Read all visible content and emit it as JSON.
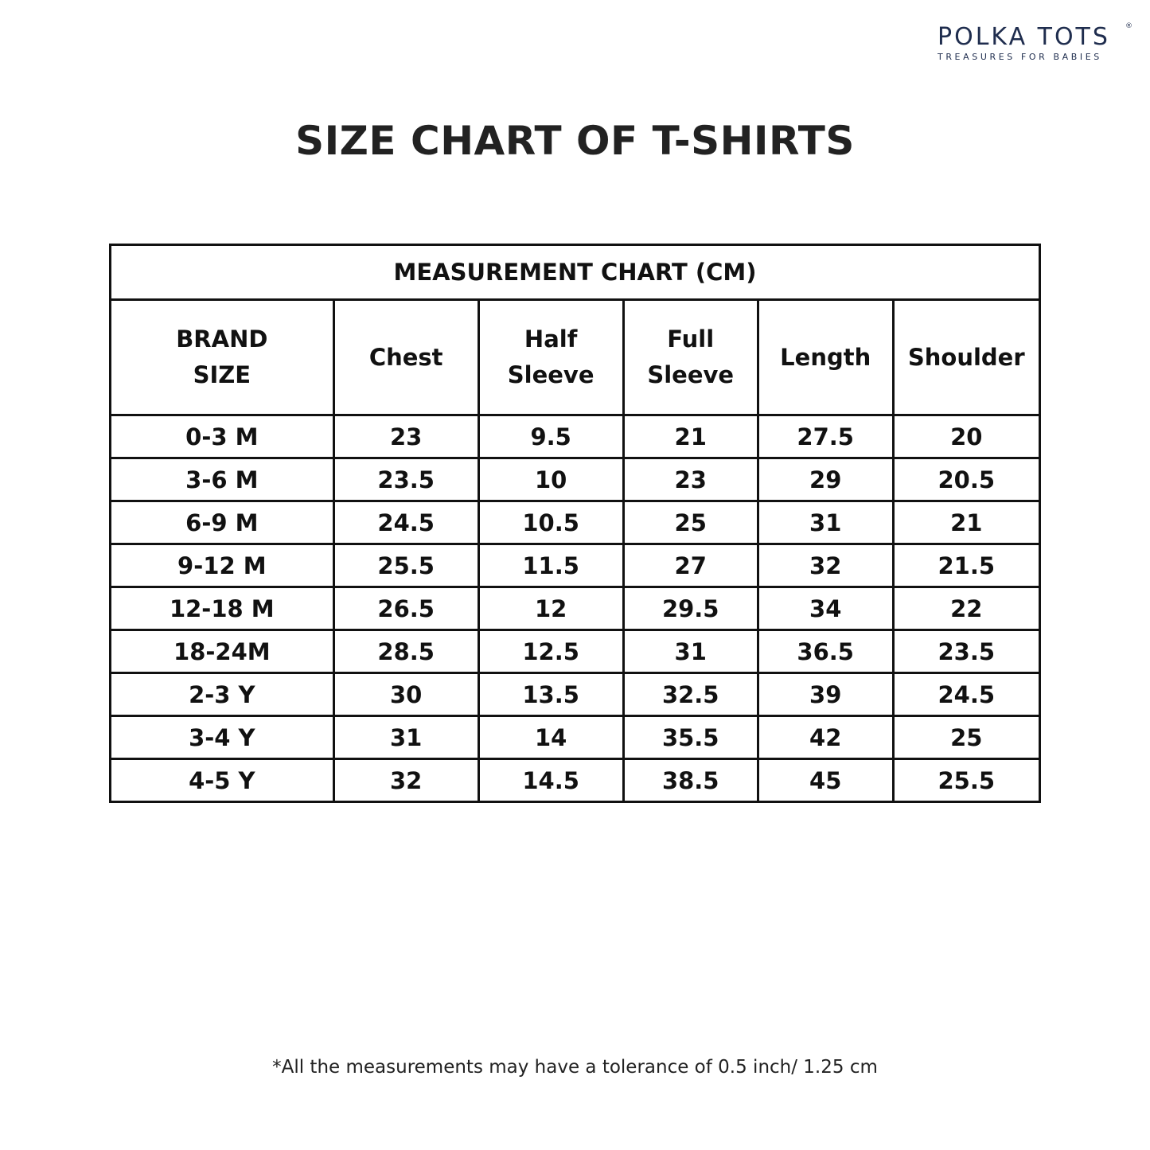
{
  "logo": {
    "brand": "POLKA TOTS",
    "tagline": "TREASURES FOR BABIES",
    "registered": "®",
    "colors": [
      "#1f2d4e",
      "#e5338a",
      "#f5c518",
      "#7ac143"
    ]
  },
  "title": "SIZE CHART OF T-SHIRTS",
  "table": {
    "caption": "MEASUREMENT CHART (CM)",
    "headers": [
      [
        "BRAND",
        "SIZE"
      ],
      [
        "Chest"
      ],
      [
        "Half",
        "Sleeve"
      ],
      [
        "Full",
        "Sleeve"
      ],
      [
        "Length"
      ],
      [
        "Shoulder"
      ]
    ],
    "rows": [
      [
        "0-3 M",
        "23",
        "9.5",
        "21",
        "27.5",
        "20"
      ],
      [
        "3-6 M",
        "23.5",
        "10",
        "23",
        "29",
        "20.5"
      ],
      [
        "6-9 M",
        "24.5",
        "10.5",
        "25",
        "31",
        "21"
      ],
      [
        "9-12 M",
        "25.5",
        "11.5",
        "27",
        "32",
        "21.5"
      ],
      [
        "12-18 M",
        "26.5",
        "12",
        "29.5",
        "34",
        "22"
      ],
      [
        "18-24M",
        "28.5",
        "12.5",
        "31",
        "36.5",
        "23.5"
      ],
      [
        "2-3 Y",
        "30",
        "13.5",
        "32.5",
        "39",
        "24.5"
      ],
      [
        "3-4 Y",
        "31",
        "14",
        "35.5",
        "42",
        "25"
      ],
      [
        "4-5 Y",
        "32",
        "14.5",
        "38.5",
        "45",
        "25.5"
      ]
    ]
  },
  "note": "*All the measurements may have a tolerance of 0.5 inch/ 1.25 cm"
}
